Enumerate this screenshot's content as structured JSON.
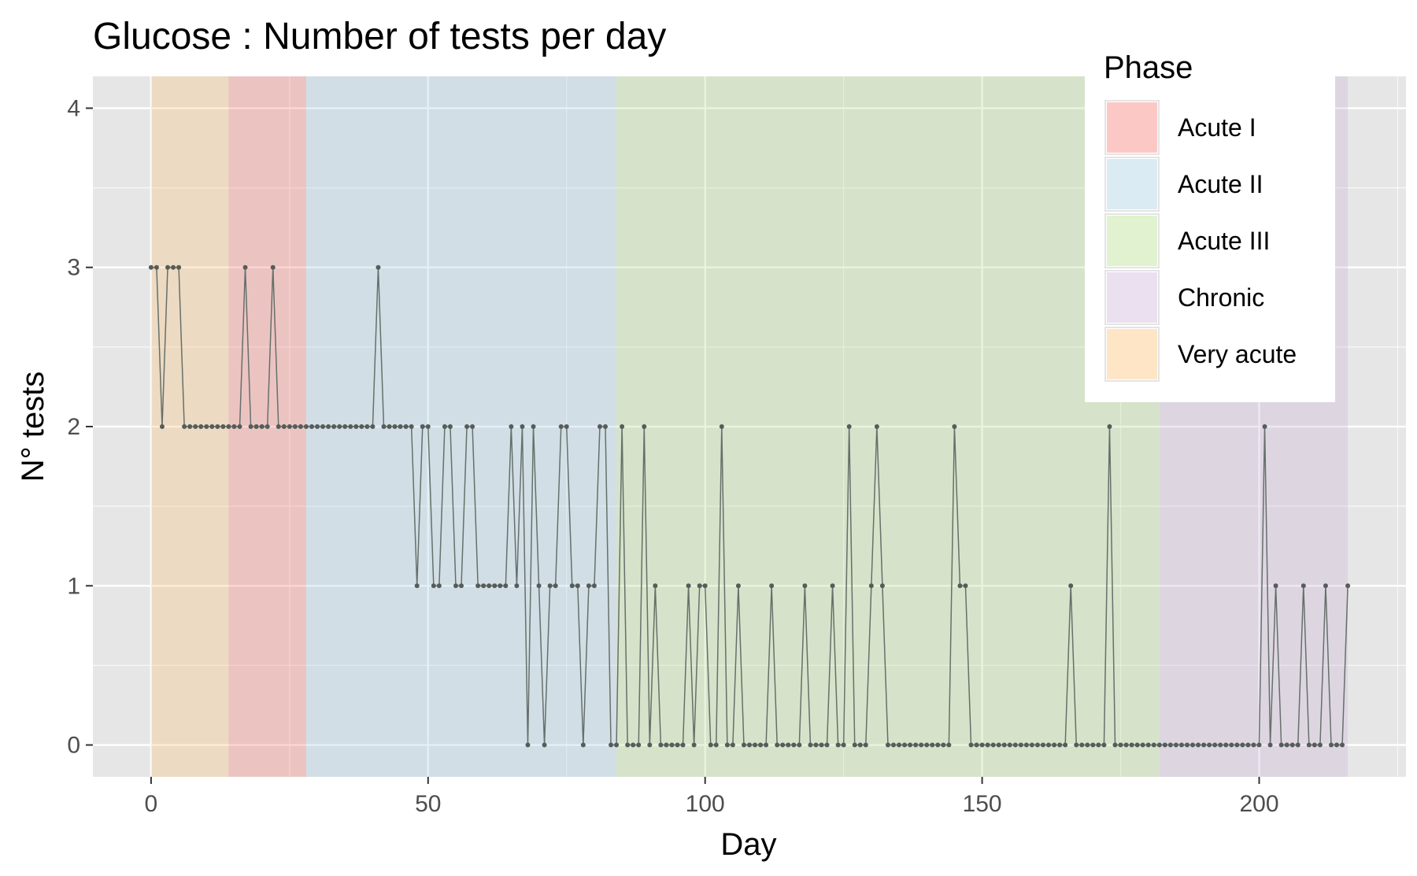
{
  "chart_data": {
    "type": "line",
    "title": "Glucose : Number of tests per day",
    "xlabel": "Day",
    "ylabel": "N° tests",
    "xlim": [
      -10.5,
      226.5
    ],
    "ylim": [
      -0.2,
      4.2
    ],
    "x_ticks": [
      0,
      50,
      100,
      150,
      200
    ],
    "y_ticks": [
      0,
      1,
      2,
      3,
      4
    ],
    "grid": true,
    "legend": {
      "title": "Phase",
      "placement": "top-right",
      "entries": [
        {
          "label": "Acute I",
          "color": "#F8766D"
        },
        {
          "label": "Acute II",
          "color": "#A6CEE3"
        },
        {
          "label": "Acute III",
          "color": "#B2DF8A"
        },
        {
          "label": "Chronic",
          "color": "#CAB2D6"
        },
        {
          "label": "Very acute",
          "color": "#FDBF6F"
        }
      ]
    },
    "phases": [
      {
        "name": "Very acute",
        "start": 0,
        "end": 14
      },
      {
        "name": "Acute I",
        "start": 14,
        "end": 28
      },
      {
        "name": "Acute II",
        "start": 28,
        "end": 84
      },
      {
        "name": "Acute III",
        "start": 84,
        "end": 182
      },
      {
        "name": "Chronic",
        "start": 182,
        "end": 216
      }
    ],
    "series": [
      {
        "x": [
          0,
          1,
          2,
          3,
          4,
          5,
          6,
          7,
          8,
          9,
          10,
          11,
          12,
          13,
          14,
          15,
          16,
          17,
          18,
          19,
          20,
          21,
          22,
          23,
          24,
          25,
          26,
          27,
          28,
          29,
          30,
          31,
          32,
          33,
          34,
          35,
          36,
          37,
          38,
          39,
          40,
          41,
          42,
          43,
          44,
          45,
          46,
          47,
          48,
          49,
          50,
          51,
          52,
          53,
          54,
          55,
          56,
          57,
          58,
          59,
          60,
          61,
          62,
          63,
          64,
          65,
          66,
          67,
          68,
          69,
          70,
          71,
          72,
          73,
          74,
          75,
          76,
          77,
          78,
          79,
          80,
          81,
          82,
          83,
          84,
          85,
          86,
          87,
          88,
          89,
          90,
          91,
          92,
          93,
          94,
          95,
          96,
          97,
          98,
          99,
          100,
          101,
          102,
          103,
          104,
          105,
          106,
          107,
          108,
          109,
          110,
          111,
          112,
          113,
          114,
          115,
          116,
          117,
          118,
          119,
          120,
          121,
          122,
          123,
          124,
          125,
          126,
          127,
          128,
          129,
          130,
          131,
          132,
          133,
          134,
          135,
          136,
          137,
          138,
          139,
          140,
          141,
          142,
          143,
          144,
          145,
          146,
          147,
          148,
          149,
          150,
          151,
          152,
          153,
          154,
          155,
          156,
          157,
          158,
          159,
          160,
          161,
          162,
          163,
          164,
          165,
          166,
          167,
          168,
          169,
          170,
          171,
          172,
          173,
          174,
          175,
          176,
          177,
          178,
          179,
          180,
          181,
          182,
          183,
          184,
          185,
          186,
          187,
          188,
          189,
          190,
          191,
          192,
          193,
          194,
          195,
          196,
          197,
          198,
          199,
          200,
          201,
          202,
          203,
          204,
          205,
          206,
          207,
          208,
          209,
          210,
          211,
          212,
          213,
          214,
          215,
          216
        ],
        "values": [
          3,
          3,
          2,
          3,
          3,
          3,
          2,
          2,
          2,
          2,
          2,
          2,
          2,
          2,
          2,
          2,
          2,
          3,
          2,
          2,
          2,
          2,
          3,
          2,
          2,
          2,
          2,
          2,
          2,
          2,
          2,
          2,
          2,
          2,
          2,
          2,
          2,
          2,
          2,
          2,
          2,
          3,
          2,
          2,
          2,
          2,
          2,
          2,
          1,
          2,
          2,
          1,
          1,
          2,
          2,
          1,
          1,
          2,
          2,
          1,
          1,
          1,
          1,
          1,
          1,
          2,
          1,
          2,
          0,
          2,
          1,
          0,
          1,
          1,
          2,
          2,
          1,
          1,
          0,
          1,
          1,
          2,
          2,
          0,
          0,
          2,
          0,
          0,
          0,
          2,
          0,
          1,
          0,
          0,
          0,
          0,
          0,
          1,
          0,
          1,
          1,
          0,
          0,
          2,
          0,
          0,
          1,
          0,
          0,
          0,
          0,
          0,
          1,
          0,
          0,
          0,
          0,
          0,
          1,
          0,
          0,
          0,
          0,
          1,
          0,
          0,
          2,
          0,
          0,
          0,
          1,
          2,
          1,
          0,
          0,
          0,
          0,
          0,
          0,
          0,
          0,
          0,
          0,
          0,
          0,
          2,
          1,
          1,
          0,
          0,
          0,
          0,
          0,
          0,
          0,
          0,
          0,
          0,
          0,
          0,
          0,
          0,
          0,
          0,
          0,
          0,
          1,
          0,
          0,
          0,
          0,
          0,
          0,
          2,
          0,
          0,
          0,
          0,
          0,
          0,
          0,
          0,
          0,
          0,
          0,
          0,
          0,
          0,
          0,
          0,
          0,
          0,
          0,
          0,
          0,
          0,
          0,
          0,
          0,
          0,
          0,
          2,
          0,
          1,
          0,
          0,
          0,
          0,
          1,
          0,
          0,
          0,
          1,
          0,
          0,
          0,
          1
        ]
      }
    ]
  },
  "colors": {
    "panel_background": "#E6E6E6",
    "grid_major": "#FFFFFF",
    "line": "#66706b",
    "point": "#555c59"
  }
}
